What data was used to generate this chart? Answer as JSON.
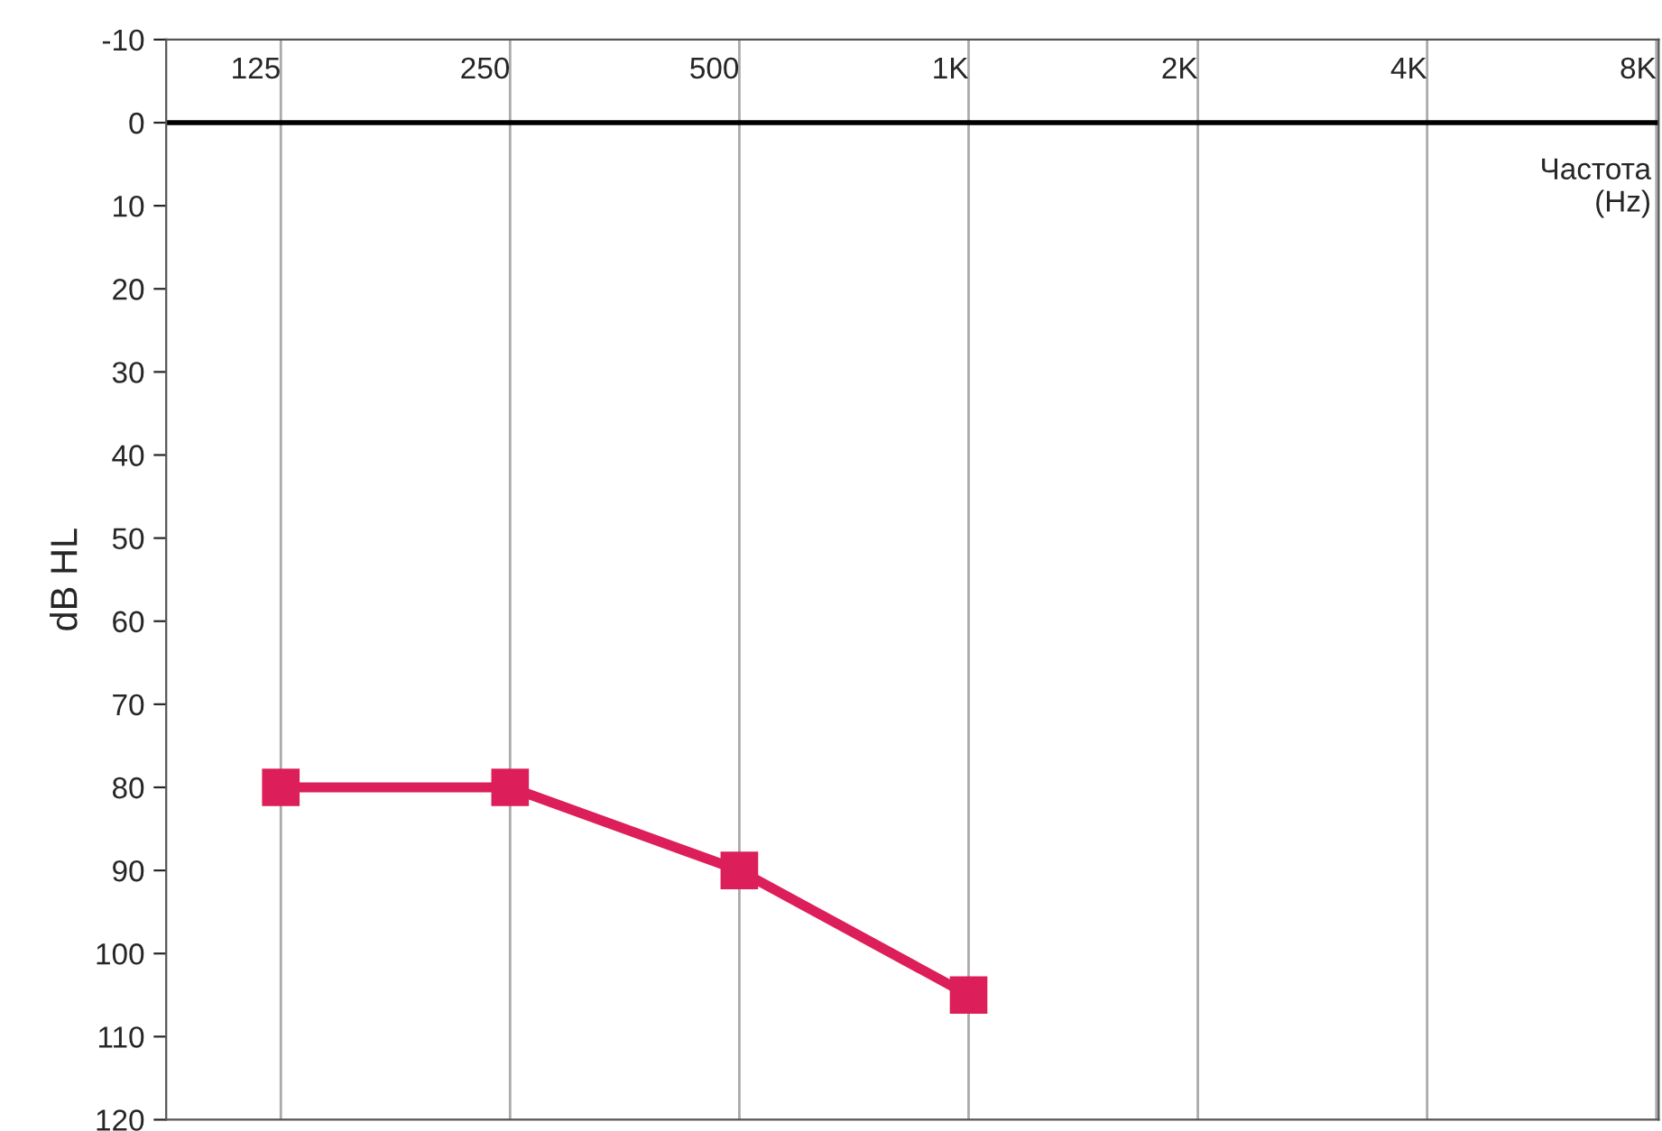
{
  "chart_data": {
    "type": "line",
    "ylabel": "dB HL",
    "categories": [
      "125",
      "250",
      "500",
      "1K",
      "2K",
      "4K",
      "8K"
    ],
    "series": [
      {
        "color": "#dc1f5a",
        "values": [
          80,
          80,
          90,
          105,
          null,
          null,
          null
        ]
      }
    ],
    "ylim": [
      120,
      -10
    ],
    "yticks": [
      -10,
      0,
      10,
      20,
      30,
      40,
      50,
      60,
      70,
      80,
      90,
      100,
      110,
      120
    ],
    "grid": "x",
    "marker": "square",
    "line_style": "solid",
    "legend": false,
    "ref_lines": [
      {
        "axis": "y",
        "value": 0,
        "color": "#000000"
      }
    ],
    "annotations": [
      "Частота\n(Hz)"
    ]
  }
}
